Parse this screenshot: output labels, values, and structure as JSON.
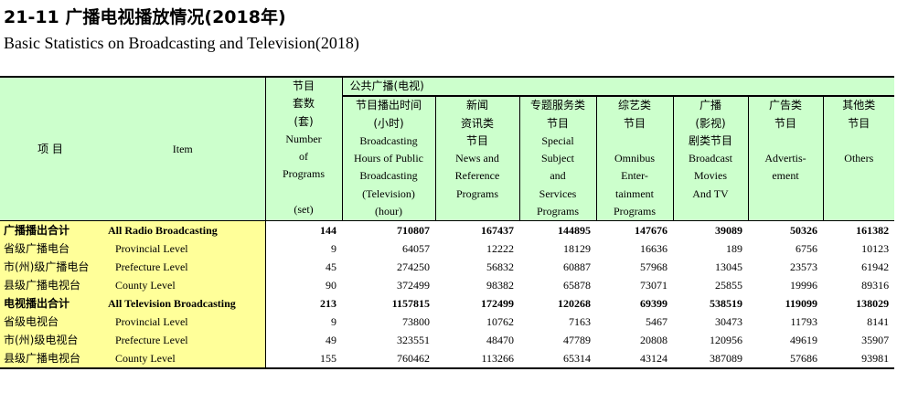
{
  "title_cn": "21-11  广播电视播放情况(2018年)",
  "title_en": "Basic Statistics on Broadcasting and Television(2018)",
  "header": {
    "item_cn": "项   目",
    "item_en": "Item",
    "programs": [
      "节目",
      "套数",
      "(套)",
      "Number",
      "of",
      "Programs",
      "",
      "(set)"
    ],
    "public_title": "公共广播(电视)",
    "hours": [
      "节目播出时间",
      "(小时)",
      "Broadcasting",
      "Hours of Public",
      "Broadcasting",
      "(Television)",
      "(hour)"
    ],
    "news": [
      "新闻",
      "资讯类",
      "节目",
      "News and",
      "Reference",
      "Programs"
    ],
    "special": [
      "专题服务类",
      "节目",
      "Special",
      "Subject",
      "and",
      "Services",
      "Programs"
    ],
    "omnibus": [
      "综艺类",
      "节目",
      "",
      "Omnibus",
      "Enter-",
      "tainment",
      "Programs"
    ],
    "movies": [
      "广播",
      "(影视)",
      "剧类节目",
      "Broadcast",
      "Movies",
      "And  TV"
    ],
    "advert": [
      "广告类",
      "节目",
      "",
      "Advertis-",
      "ement"
    ],
    "others": [
      "其他类",
      "节目",
      "",
      "Others"
    ]
  },
  "rows": [
    {
      "cn": "广播播出合计",
      "en": "All Radio Broadcasting",
      "bold": true,
      "values": [
        "144",
        "710807",
        "167437",
        "144895",
        "147676",
        "39089",
        "50326",
        "161382"
      ]
    },
    {
      "cn": "省级广播电台",
      "en": "Provincial Level",
      "bold": false,
      "values": [
        "9",
        "64057",
        "12222",
        "18129",
        "16636",
        "189",
        "6756",
        "10123"
      ]
    },
    {
      "cn": "市(州)级广播电台",
      "en": "Prefecture Level",
      "bold": false,
      "values": [
        "45",
        "274250",
        "56832",
        "60887",
        "57968",
        "13045",
        "23573",
        "61942"
      ]
    },
    {
      "cn": "县级广播电视台",
      "en": "County Level",
      "bold": false,
      "values": [
        "90",
        "372499",
        "98382",
        "65878",
        "73071",
        "25855",
        "19996",
        "89316"
      ]
    },
    {
      "cn": "电视播出合计",
      "en": "All Television  Broadcasting",
      "bold": true,
      "values": [
        "213",
        "1157815",
        "172499",
        "120268",
        "69399",
        "538519",
        "119099",
        "138029"
      ]
    },
    {
      "cn": "省级电视台",
      "en": "Provincial Level",
      "bold": false,
      "values": [
        "9",
        "73800",
        "10762",
        "7163",
        "5467",
        "30473",
        "11793",
        "8141"
      ]
    },
    {
      "cn": "市(州)级电视台",
      "en": "Prefecture Level",
      "bold": false,
      "values": [
        "49",
        "323551",
        "48470",
        "47789",
        "20808",
        "120956",
        "49619",
        "35907"
      ]
    },
    {
      "cn": "县级广播电视台",
      "en": "County Level",
      "bold": false,
      "values": [
        "155",
        "760462",
        "113266",
        "65314",
        "43124",
        "387089",
        "57686",
        "93981"
      ]
    }
  ]
}
